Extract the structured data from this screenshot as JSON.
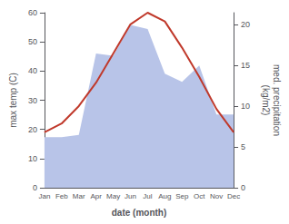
{
  "chart_data": {
    "type": "line",
    "categories": [
      "Jan",
      "Feb",
      "Mar",
      "Apr",
      "May",
      "Jun",
      "Jul",
      "Aug",
      "Sep",
      "Oct",
      "Nov",
      "Dec"
    ],
    "series": [
      {
        "type": "area",
        "color": "#b8c4e8",
        "axis": "y2",
        "values": [
          6.2,
          6.2,
          6.5,
          16.5,
          16.2,
          20.0,
          19.5,
          14.0,
          13.0,
          15.0,
          9.0,
          9.0
        ]
      },
      {
        "type": "line",
        "color": "#c0392b",
        "values": [
          19,
          22,
          28,
          36,
          46,
          56,
          60,
          57,
          48,
          38,
          27,
          19
        ]
      }
    ],
    "xlabel": "date (month)",
    "ylabel": "max temp (C)",
    "y2label": "med. precipitation\n(kg/m2)",
    "ylim": [
      0,
      60
    ],
    "yticks": [
      0,
      10,
      20,
      30,
      40,
      50,
      60
    ],
    "y2lim": [
      0,
      21.5
    ],
    "y2ticks": [
      0,
      5,
      10,
      15,
      20
    ],
    "grid": false
  }
}
